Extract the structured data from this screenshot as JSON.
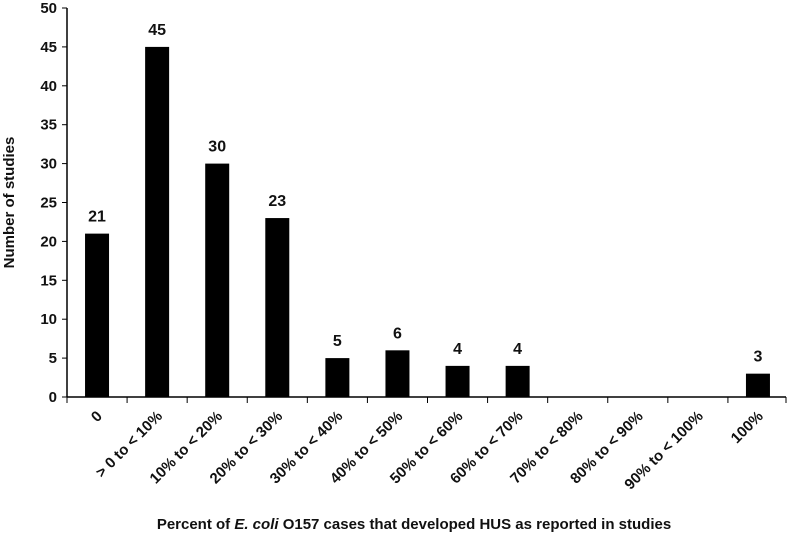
{
  "chart_data": {
    "type": "bar",
    "categories": [
      "0",
      "> 0 to < 10%",
      "10% to < 20%",
      "20% to < 30%",
      "30% to < 40%",
      "40% to < 50%",
      "50% to < 60%",
      "60% to < 70%",
      "70% to < 80%",
      "80% to < 90%",
      "90% to < 100%",
      "100%"
    ],
    "values": [
      21,
      45,
      30,
      23,
      5,
      6,
      4,
      4,
      0,
      0,
      0,
      3
    ],
    "data_labels": [
      "21",
      "45",
      "30",
      "23",
      "5",
      "6",
      "4",
      "4",
      "",
      "",
      "",
      "3"
    ],
    "xlabel_parts": [
      "Percent of ",
      "E. coli",
      " O157 cases that developed HUS as reported in studies"
    ],
    "ylabel": "Number of studies",
    "ylim": [
      0,
      50
    ],
    "yticks": [
      0,
      5,
      10,
      15,
      20,
      25,
      30,
      35,
      40,
      45,
      50
    ],
    "bar_color": "#000000",
    "grid": false,
    "legend": false
  }
}
